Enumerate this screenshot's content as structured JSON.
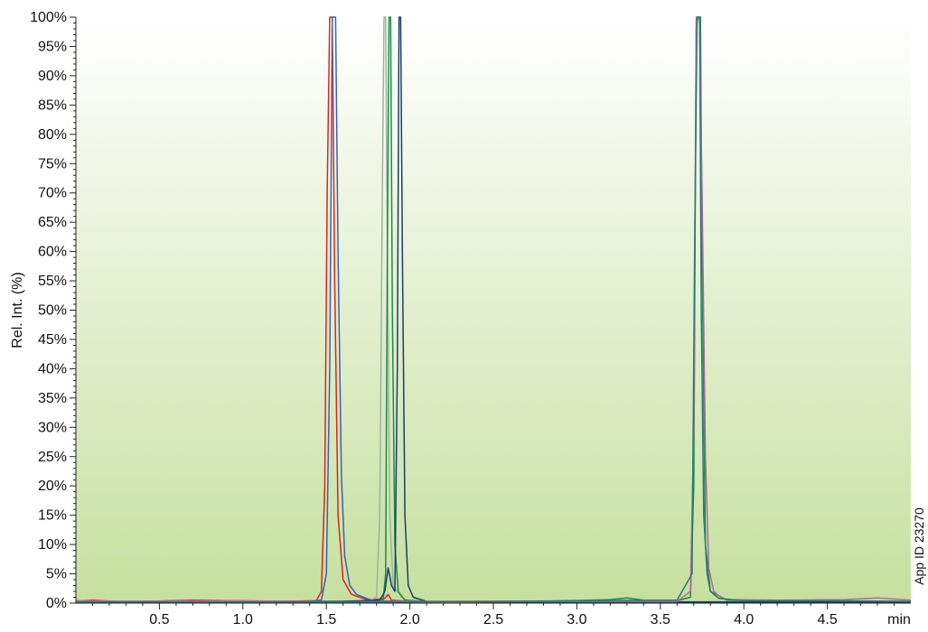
{
  "chart_data": {
    "type": "line",
    "title": "",
    "ylabel": "Rel. Int. (%)",
    "xlabel": "min",
    "xlim": [
      0,
      5.0
    ],
    "ylim": [
      0,
      100
    ],
    "x_ticks": [
      {
        "value": 0.5,
        "label": "0.5"
      },
      {
        "value": 1.0,
        "label": "1.0"
      },
      {
        "value": 1.5,
        "label": "1.5"
      },
      {
        "value": 2.0,
        "label": "2.0"
      },
      {
        "value": 2.5,
        "label": "2.5"
      },
      {
        "value": 3.0,
        "label": "3.0"
      },
      {
        "value": 3.5,
        "label": "3.5"
      },
      {
        "value": 4.0,
        "label": "4.0"
      },
      {
        "value": 4.5,
        "label": "4.5"
      }
    ],
    "y_ticks": [
      {
        "value": 0,
        "label": "0%"
      },
      {
        "value": 5,
        "label": "5%"
      },
      {
        "value": 10,
        "label": "10%"
      },
      {
        "value": 15,
        "label": "15%"
      },
      {
        "value": 20,
        "label": "20%"
      },
      {
        "value": 25,
        "label": "25%"
      },
      {
        "value": 30,
        "label": "30%"
      },
      {
        "value": 35,
        "label": "35%"
      },
      {
        "value": 40,
        "label": "40%"
      },
      {
        "value": 45,
        "label": "45%"
      },
      {
        "value": 50,
        "label": "50%"
      },
      {
        "value": 55,
        "label": "55%"
      },
      {
        "value": 60,
        "label": "60%"
      },
      {
        "value": 65,
        "label": "65%"
      },
      {
        "value": 70,
        "label": "70%"
      },
      {
        "value": 75,
        "label": "75%"
      },
      {
        "value": 80,
        "label": "80%"
      },
      {
        "value": 85,
        "label": "85%"
      },
      {
        "value": 90,
        "label": "90%"
      },
      {
        "value": 95,
        "label": "95%"
      },
      {
        "value": 100,
        "label": "100%"
      }
    ],
    "grid": false,
    "background_gradient": {
      "top": "#ffffff",
      "bottom": "#c6e09f"
    },
    "annotation": "App ID 23270",
    "series": [
      {
        "color": "#d9261c",
        "points": [
          [
            0,
            0.3
          ],
          [
            0.1,
            0.5
          ],
          [
            0.3,
            0.2
          ],
          [
            0.7,
            0.5
          ],
          [
            1.2,
            0.3
          ],
          [
            1.44,
            0.4
          ],
          [
            1.47,
            2
          ],
          [
            1.49,
            20
          ],
          [
            1.505,
            70
          ],
          [
            1.52,
            100
          ],
          [
            1.535,
            100
          ],
          [
            1.55,
            55
          ],
          [
            1.57,
            15
          ],
          [
            1.6,
            4
          ],
          [
            1.65,
            1.5
          ],
          [
            1.75,
            0.5
          ],
          [
            1.85,
            0.8
          ],
          [
            1.87,
            1.5
          ],
          [
            1.89,
            0.5
          ],
          [
            2.0,
            0.3
          ],
          [
            2.5,
            0.2
          ],
          [
            3.0,
            0.2
          ],
          [
            3.5,
            0.2
          ],
          [
            4.0,
            0.1
          ],
          [
            4.5,
            0.2
          ],
          [
            5.0,
            0.2
          ]
        ]
      },
      {
        "color": "#3a62b4",
        "points": [
          [
            0,
            0.4
          ],
          [
            0.2,
            0.2
          ],
          [
            0.6,
            0.4
          ],
          [
            1.0,
            0.2
          ],
          [
            1.4,
            0.3
          ],
          [
            1.47,
            0.5
          ],
          [
            1.5,
            5
          ],
          [
            1.52,
            40
          ],
          [
            1.535,
            100
          ],
          [
            1.555,
            100
          ],
          [
            1.57,
            60
          ],
          [
            1.59,
            22
          ],
          [
            1.61,
            8
          ],
          [
            1.64,
            3
          ],
          [
            1.68,
            1.5
          ],
          [
            1.75,
            0.7
          ],
          [
            1.8,
            0.4
          ],
          [
            2.0,
            0.3
          ],
          [
            3.0,
            0.2
          ],
          [
            3.7,
            0.2
          ],
          [
            4.0,
            0.2
          ],
          [
            5.0,
            0.2
          ]
        ]
      },
      {
        "color": "#9ab59a",
        "points": [
          [
            0,
            0.2
          ],
          [
            1.5,
            0.2
          ],
          [
            1.75,
            0.3
          ],
          [
            1.8,
            1
          ],
          [
            1.82,
            15
          ],
          [
            1.835,
            70
          ],
          [
            1.845,
            100
          ],
          [
            1.855,
            100
          ],
          [
            1.865,
            60
          ],
          [
            1.88,
            15
          ],
          [
            1.9,
            3
          ],
          [
            1.95,
            1
          ],
          [
            2.0,
            0.3
          ],
          [
            3.0,
            0.3
          ],
          [
            5.0,
            0.2
          ]
        ]
      },
      {
        "color": "#1e8a4a",
        "points": [
          [
            0,
            0.3
          ],
          [
            1.8,
            0.3
          ],
          [
            1.84,
            0.5
          ],
          [
            1.855,
            5
          ],
          [
            1.865,
            60
          ],
          [
            1.875,
            100
          ],
          [
            1.885,
            100
          ],
          [
            1.895,
            50
          ],
          [
            1.91,
            10
          ],
          [
            1.93,
            2
          ],
          [
            1.97,
            0.5
          ],
          [
            2.1,
            0.3
          ],
          [
            2.8,
            0.3
          ],
          [
            3.2,
            0.6
          ],
          [
            3.3,
            0.9
          ],
          [
            3.4,
            0.5
          ],
          [
            3.6,
            0.4
          ],
          [
            3.68,
            1
          ],
          [
            3.7,
            20
          ],
          [
            3.715,
            98
          ],
          [
            3.725,
            100
          ],
          [
            3.74,
            100
          ],
          [
            3.75,
            60
          ],
          [
            3.77,
            10
          ],
          [
            3.8,
            2
          ],
          [
            3.9,
            0.5
          ],
          [
            4.5,
            0.4
          ],
          [
            5.0,
            0.3
          ]
        ]
      },
      {
        "color": "#1e3c6e",
        "points": [
          [
            0,
            0.3
          ],
          [
            1.6,
            0.3
          ],
          [
            1.82,
            0.5
          ],
          [
            1.85,
            2
          ],
          [
            1.87,
            6
          ],
          [
            1.89,
            3
          ],
          [
            1.91,
            2
          ],
          [
            1.925,
            40
          ],
          [
            1.935,
            100
          ],
          [
            1.945,
            100
          ],
          [
            1.955,
            60
          ],
          [
            1.97,
            15
          ],
          [
            1.99,
            3
          ],
          [
            2.02,
            1
          ],
          [
            2.1,
            0.3
          ],
          [
            3.0,
            0.2
          ],
          [
            5.0,
            0.2
          ]
        ]
      },
      {
        "color": "#b06aa0",
        "points": [
          [
            0,
            0.4
          ],
          [
            0.3,
            0.3
          ],
          [
            1.0,
            0.4
          ],
          [
            1.6,
            0.2
          ],
          [
            2.0,
            0.3
          ],
          [
            3.0,
            0.3
          ],
          [
            3.6,
            0.3
          ],
          [
            3.68,
            2
          ],
          [
            3.7,
            30
          ],
          [
            3.715,
            100
          ],
          [
            3.735,
            100
          ],
          [
            3.75,
            70
          ],
          [
            3.77,
            25
          ],
          [
            3.79,
            6
          ],
          [
            3.82,
            2
          ],
          [
            3.86,
            1
          ],
          [
            3.9,
            0.6
          ],
          [
            4.2,
            0.5
          ],
          [
            4.6,
            0.6
          ],
          [
            4.8,
            0.9
          ],
          [
            5.0,
            0.5
          ]
        ]
      },
      {
        "color": "#2a7a72",
        "points": [
          [
            0,
            0.2
          ],
          [
            1.0,
            0.2
          ],
          [
            2.0,
            0.2
          ],
          [
            2.5,
            0.3
          ],
          [
            3.0,
            0.4
          ],
          [
            3.5,
            0.5
          ],
          [
            3.6,
            0.5
          ],
          [
            3.69,
            5
          ],
          [
            3.705,
            60
          ],
          [
            3.72,
            100
          ],
          [
            3.735,
            100
          ],
          [
            3.745,
            50
          ],
          [
            3.76,
            15
          ],
          [
            3.78,
            5
          ],
          [
            3.8,
            2
          ],
          [
            3.85,
            0.8
          ],
          [
            4.0,
            0.4
          ],
          [
            4.5,
            0.4
          ],
          [
            5.0,
            0.3
          ]
        ]
      }
    ]
  }
}
